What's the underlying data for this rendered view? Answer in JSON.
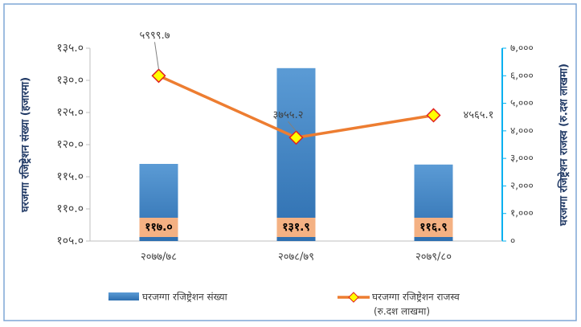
{
  "chart_data": {
    "type": "bar_line",
    "categories": [
      "२०७७/७८",
      "२०७८/७९",
      "२०७९/८०"
    ],
    "series": [
      {
        "name": "घरजग्गा रजिष्ट्रेशन संख्या",
        "type": "bar",
        "color": "#3b82c8",
        "values": [
          117.0,
          131.9,
          116.9
        ],
        "value_labels": [
          "११७.०",
          "१३१.९",
          "११६.९"
        ]
      },
      {
        "name": "घरजग्गा रजिष्ट्रेशन राजस्व",
        "type": "line",
        "axis": "y2",
        "color": "#ed7d31",
        "values": [
          5999.7,
          3755.2,
          4565.1
        ],
        "value_labels": [
          "५९९९.७",
          "३७५५.२",
          "४५६५.१"
        ]
      }
    ],
    "legend_note": "(रु.दश लाखमा)",
    "ylabel": "घरजग्गा रजिष्ट्रेशन संख्या (हजारमा)",
    "y2label": "घरजग्गा रजिष्ट्रेशन राजस्व (रु.दश लाखमा)",
    "ylim": [
      105,
      135
    ],
    "yticks": [
      {
        "value": 105,
        "label": "१०५.०"
      },
      {
        "value": 110,
        "label": "११०.०"
      },
      {
        "value": 115,
        "label": "११५.०"
      },
      {
        "value": 120,
        "label": "१२०.०"
      },
      {
        "value": 125,
        "label": "१२५.०"
      },
      {
        "value": 130,
        "label": "१३०.०"
      },
      {
        "value": 135,
        "label": "१३५.०"
      }
    ],
    "y2lim": [
      0,
      7000
    ],
    "y2ticks": [
      {
        "value": 0,
        "label": "०"
      },
      {
        "value": 1000,
        "label": "१,०००"
      },
      {
        "value": 2000,
        "label": "२,०००"
      },
      {
        "value": 3000,
        "label": "३,०००"
      },
      {
        "value": 4000,
        "label": "४,०००"
      },
      {
        "value": 5000,
        "label": "५,०००"
      },
      {
        "value": 6000,
        "label": "६,०००"
      },
      {
        "value": 7000,
        "label": "७,०००"
      }
    ],
    "grid": false
  }
}
